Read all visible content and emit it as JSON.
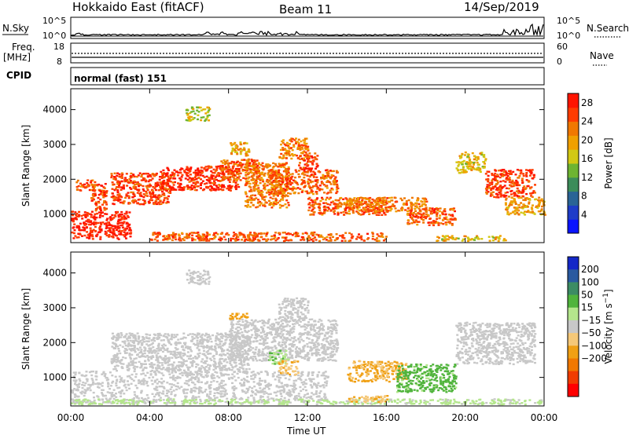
{
  "header": {
    "title": "Hokkaido East (fitACF)",
    "beam": "Beam 11",
    "date": "14/Sep/2019"
  },
  "strips": {
    "nsky_label": "N.Sky",
    "nsky_ticks": [
      "10^5",
      "10^0"
    ],
    "nsearch_label": "N.Search",
    "nsearch_ticks": [
      "10^5",
      "10^0"
    ],
    "freq_label": "Freq.",
    "freq_unit": "[MHz]",
    "freq_ticks": [
      "18",
      "8"
    ],
    "nave_label": "Nave",
    "nave_ticks": [
      "60",
      "0"
    ],
    "cpid_label": "CPID",
    "cpid_text": "normal (fast) 151"
  },
  "chart_data": [
    {
      "type": "heatmap",
      "name": "power",
      "xlabel": "Time UT",
      "ylabel": "Slant Range [km]",
      "x_ticks": [
        "00:00",
        "04:00",
        "08:00",
        "12:00",
        "16:00",
        "20:00",
        "00:00"
      ],
      "x_range_hours": [
        0,
        24
      ],
      "y_ticks": [
        1000,
        2000,
        3000,
        4000
      ],
      "y_range_km": [
        180,
        4600
      ],
      "colorbar": {
        "label": "Power [dB]",
        "ticks": [
          4,
          8,
          12,
          16,
          20,
          24,
          28
        ],
        "range": [
          0,
          30
        ],
        "colors": [
          "#0a14ff",
          "#1e3cc8",
          "#2a6496",
          "#3c8c5a",
          "#6eb432",
          "#d2c814",
          "#f0a000",
          "#f07800",
          "#ff3c00",
          "#ff1400"
        ]
      },
      "regions": [
        {
          "t": [
            0.0,
            3.0
          ],
          "r": [
            300,
            1100
          ],
          "level": 28
        },
        {
          "t": [
            0.2,
            1.2
          ],
          "r": [
            1700,
            2000
          ],
          "level": 24
        },
        {
          "t": [
            1.0,
            1.8
          ],
          "r": [
            1100,
            1900
          ],
          "level": 26
        },
        {
          "t": [
            2.0,
            5.0
          ],
          "r": [
            1300,
            2200
          ],
          "level": 26
        },
        {
          "t": [
            4.5,
            8.5
          ],
          "r": [
            1700,
            2400
          ],
          "level": 27
        },
        {
          "t": [
            7.5,
            9.5
          ],
          "r": [
            2000,
            2600
          ],
          "level": 24
        },
        {
          "t": [
            8.8,
            11.0
          ],
          "r": [
            1200,
            2500
          ],
          "level": 22
        },
        {
          "t": [
            10.0,
            13.5
          ],
          "r": [
            1600,
            2300
          ],
          "level": 24
        },
        {
          "t": [
            11.5,
            12.5
          ],
          "r": [
            2300,
            2800
          ],
          "level": 25
        },
        {
          "t": [
            5.8,
            7.0
          ],
          "r": [
            3700,
            4100
          ],
          "level": 16
        },
        {
          "t": [
            10.5,
            12.0
          ],
          "r": [
            2600,
            3200
          ],
          "level": 22
        },
        {
          "t": [
            8.0,
            9.0
          ],
          "r": [
            2700,
            3100
          ],
          "level": 20
        },
        {
          "t": [
            4.0,
            16.0
          ],
          "r": [
            250,
            500
          ],
          "level": 24
        },
        {
          "t": [
            12.0,
            16.0
          ],
          "r": [
            1000,
            1500
          ],
          "level": 24
        },
        {
          "t": [
            14.0,
            18.0
          ],
          "r": [
            1100,
            1500
          ],
          "level": 22
        },
        {
          "t": [
            17.0,
            19.5
          ],
          "r": [
            700,
            1200
          ],
          "level": 24
        },
        {
          "t": [
            18.5,
            22.0
          ],
          "r": [
            250,
            400
          ],
          "level": 18
        },
        {
          "t": [
            19.5,
            21.0
          ],
          "r": [
            2200,
            2800
          ],
          "level": 18
        },
        {
          "t": [
            21.0,
            23.5
          ],
          "r": [
            1500,
            2300
          ],
          "level": 26
        },
        {
          "t": [
            22.0,
            24.0
          ],
          "r": [
            1000,
            1500
          ],
          "level": 20
        }
      ]
    },
    {
      "type": "heatmap",
      "name": "velocity",
      "xlabel": "Time UT",
      "ylabel": "Slant Range [km]",
      "x_ticks": [
        "00:00",
        "04:00",
        "08:00",
        "12:00",
        "16:00",
        "20:00",
        "00:00"
      ],
      "x_range_hours": [
        0,
        24
      ],
      "y_ticks": [
        1000,
        2000,
        3000,
        4000
      ],
      "y_range_km": [
        180,
        4600
      ],
      "colorbar": {
        "label": "Velocity [m s^-1]",
        "ticks": [
          200,
          100,
          50,
          15,
          -15,
          -50,
          -100,
          -200
        ],
        "range": [
          -250,
          250
        ],
        "colors": [
          "#1428c8",
          "#2a5aa0",
          "#3c8c64",
          "#50b43c",
          "#b4e68c",
          "#c8c8c8",
          "#f5c878",
          "#f0a014",
          "#f07800",
          "#f03c00",
          "#ff0000"
        ]
      },
      "regions": [
        {
          "t": [
            0.0,
            13.0
          ],
          "r": [
            300,
            1200
          ],
          "level": 0
        },
        {
          "t": [
            2.0,
            9.0
          ],
          "r": [
            1200,
            2300
          ],
          "level": 0
        },
        {
          "t": [
            8.0,
            13.5
          ],
          "r": [
            1500,
            2700
          ],
          "level": 0
        },
        {
          "t": [
            10.5,
            12.0
          ],
          "r": [
            2700,
            3300
          ],
          "level": 0
        },
        {
          "t": [
            5.8,
            7.0
          ],
          "r": [
            3700,
            4100
          ],
          "level": 0
        },
        {
          "t": [
            10.0,
            11.0
          ],
          "r": [
            1400,
            1800
          ],
          "level": 60
        },
        {
          "t": [
            10.5,
            11.5
          ],
          "r": [
            1100,
            1500
          ],
          "level": -60
        },
        {
          "t": [
            8.0,
            9.0
          ],
          "r": [
            2700,
            2900
          ],
          "level": -80
        },
        {
          "t": [
            14.0,
            17.0
          ],
          "r": [
            900,
            1500
          ],
          "level": -70
        },
        {
          "t": [
            16.5,
            19.5
          ],
          "r": [
            600,
            1400
          ],
          "level": 80
        },
        {
          "t": [
            19.5,
            23.5
          ],
          "r": [
            1400,
            2600
          ],
          "level": 0
        },
        {
          "t": [
            0.0,
            24.0
          ],
          "r": [
            250,
            400
          ],
          "level": 30
        },
        {
          "t": [
            14.0,
            16.0
          ],
          "r": [
            300,
            500
          ],
          "level": -60
        }
      ]
    }
  ]
}
